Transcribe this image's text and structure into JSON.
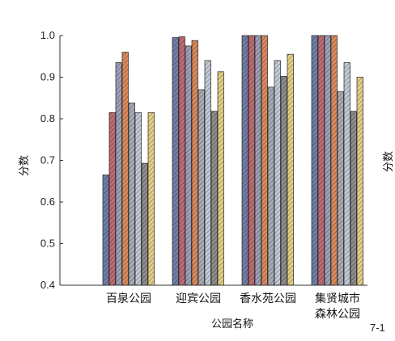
{
  "chart_data": {
    "type": "bar",
    "ylabel": "分数",
    "xlabel": "公园名称",
    "ylim": [
      0.4,
      1.0
    ],
    "yticks": [
      "0.4",
      "0.5",
      "0.6",
      "0.7",
      "0.8",
      "0.9",
      "1.0"
    ],
    "categories": [
      {
        "lines": [
          "百泉公园"
        ]
      },
      {
        "lines": [
          "迎宾公园"
        ]
      },
      {
        "lines": [
          "香水苑公园"
        ]
      },
      {
        "lines": [
          "集贤城市",
          "森林公园"
        ]
      }
    ],
    "series_colors": [
      "#6f7fa8",
      "#c06b74",
      "#9ea0b6",
      "#d98a5c",
      "#a9acb4",
      "#c2cad6",
      "#8c8c8c",
      "#e3cf86"
    ],
    "series": [
      {
        "values": [
          0.665,
          0.995,
          1.0,
          1.0
        ]
      },
      {
        "values": [
          0.815,
          0.997,
          1.0,
          1.0
        ]
      },
      {
        "values": [
          0.935,
          0.975,
          1.0,
          1.0
        ]
      },
      {
        "values": [
          0.96,
          0.988,
          1.0,
          1.0
        ]
      },
      {
        "values": [
          0.838,
          0.87,
          0.876,
          0.865
        ]
      },
      {
        "values": [
          0.815,
          0.94,
          0.94,
          0.935
        ]
      },
      {
        "values": [
          0.693,
          0.818,
          0.902,
          0.818
        ]
      },
      {
        "values": [
          0.815,
          0.913,
          0.955,
          0.9
        ]
      }
    ],
    "grid": false,
    "legend": "none"
  },
  "side_text": {
    "cut_label": "分数",
    "figure_number": "7-1"
  }
}
